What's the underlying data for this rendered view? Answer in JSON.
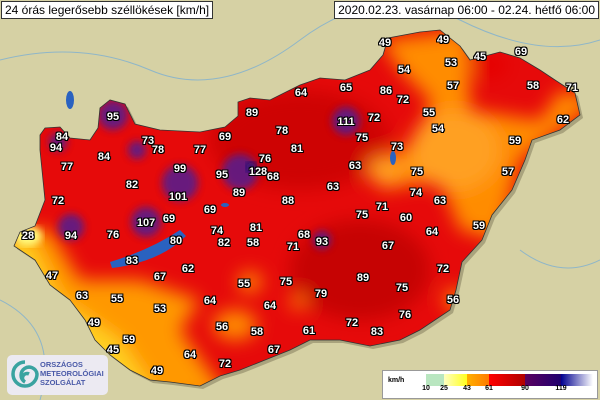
{
  "header": {
    "title": "24 órás legerősebb széllökések [km/h]",
    "period": "2020.02.23. vasárnap 06:00 - 02.24. hétfő 06:00"
  },
  "logo": {
    "line1": "ORSZÁGOS",
    "line2": "METEOROLÓGIAI",
    "line3": "SZOLGÁLAT"
  },
  "legend": {
    "unit": "km/h",
    "ticks": [
      "10",
      "25",
      "43",
      "61",
      "90",
      "119"
    ],
    "colors": {
      "10": "#b9e6c0",
      "25": "#ffff40",
      "43": "#ff9900",
      "61": "#ee0000",
      "90": "#4a0f7a",
      "119": "#0a0a9a"
    }
  },
  "stations": [
    49,
    49,
    45,
    69,
    54,
    53,
    57,
    58,
    71,
    64,
    65,
    86,
    72,
    89,
    111,
    72,
    55,
    54,
    62,
    95,
    84,
    94,
    73,
    78,
    77,
    69,
    78,
    75,
    59,
    73,
    81,
    76,
    84,
    77,
    99,
    95,
    128,
    68,
    63,
    75,
    57,
    82,
    89,
    63,
    74,
    63,
    88,
    101,
    72,
    69,
    71,
    60,
    75,
    107,
    69,
    74,
    81,
    64,
    59,
    28,
    94,
    76,
    80,
    82,
    58,
    68,
    71,
    93,
    67,
    83,
    62,
    67,
    72,
    47,
    89,
    75,
    55,
    75,
    63,
    55,
    53,
    64,
    79,
    64,
    56,
    49,
    59,
    45,
    56,
    58,
    61,
    72,
    83,
    76,
    64,
    72,
    67,
    49
  ]
}
